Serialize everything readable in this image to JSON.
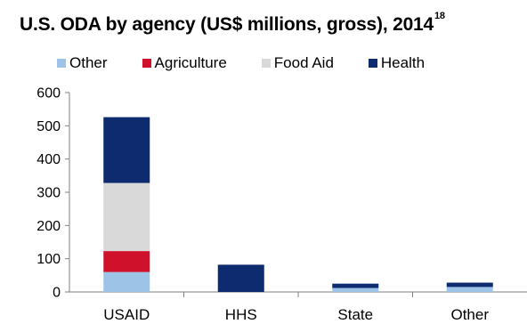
{
  "title": "U.S. ODA by agency (US$ millions, gross), 2014",
  "title_superscript": "18",
  "chart_data": {
    "type": "bar",
    "stacked": true,
    "categories": [
      "USAID",
      "HHS",
      "State",
      "Other"
    ],
    "series": [
      {
        "name": "Other",
        "color": "#9DC3E6",
        "values": [
          60,
          0,
          12,
          15
        ]
      },
      {
        "name": "Agriculture",
        "color": "#D0112B",
        "values": [
          63,
          0,
          0,
          0
        ]
      },
      {
        "name": "Food Aid",
        "color": "#D9D9D9",
        "values": [
          205,
          0,
          0,
          0
        ]
      },
      {
        "name": "Health",
        "color": "#0D2B6E",
        "values": [
          198,
          82,
          13,
          13
        ]
      }
    ],
    "ylim": [
      0,
      600
    ],
    "yticks": [
      0,
      100,
      200,
      300,
      400,
      500,
      600
    ],
    "legend_position": "top",
    "grid": false
  }
}
